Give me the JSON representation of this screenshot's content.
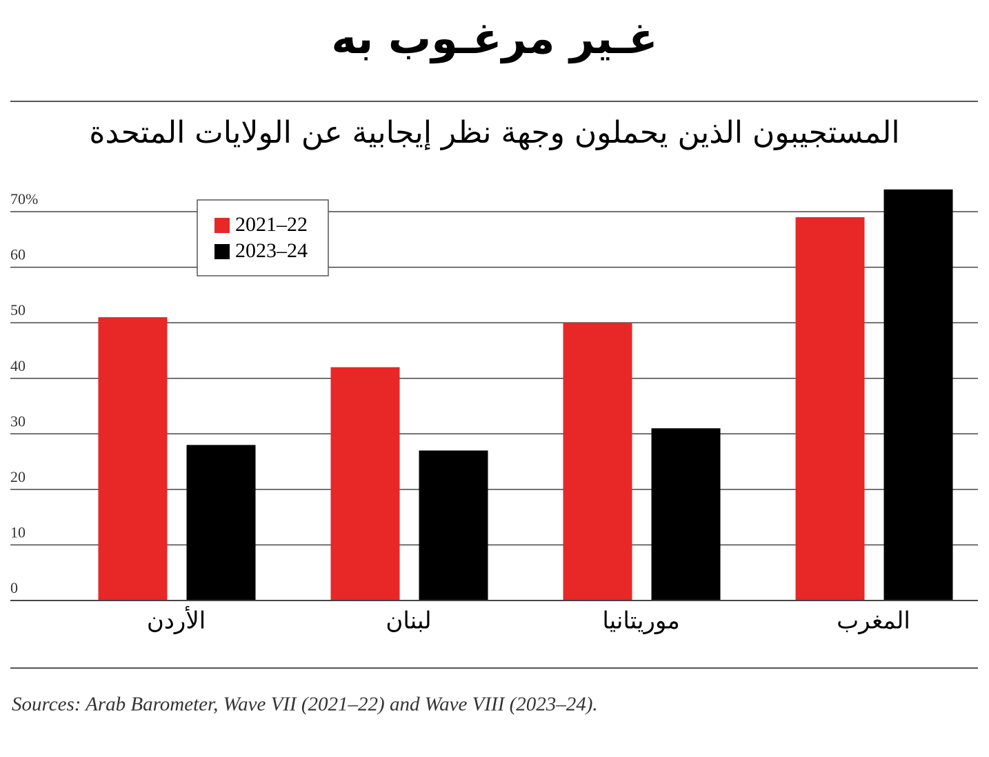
{
  "chart_data": {
    "type": "bar",
    "title": "غـير مرغـوب به",
    "subtitle": "المستجيبون الذين يحملون وجهة نظر إيجابية عن الولايات المتحدة",
    "categories": [
      "الأردن",
      "لبنان",
      "موريتانيا",
      "المغرب"
    ],
    "series": [
      {
        "name": "2021–22",
        "color": "#e82727",
        "values": [
          51,
          42,
          50,
          69
        ]
      },
      {
        "name": "2023–24",
        "color": "#000000",
        "values": [
          28,
          27,
          31,
          74
        ]
      }
    ],
    "ylim": [
      0,
      75
    ],
    "yticks": [
      0,
      10,
      20,
      30,
      40,
      50,
      60,
      {
        "value": 70,
        "label": "70%"
      }
    ],
    "grid": true,
    "legend": "top-left",
    "source": "Sources: Arab Barometer, Wave VII (2021–22) and Wave VIII (2023–24)."
  }
}
